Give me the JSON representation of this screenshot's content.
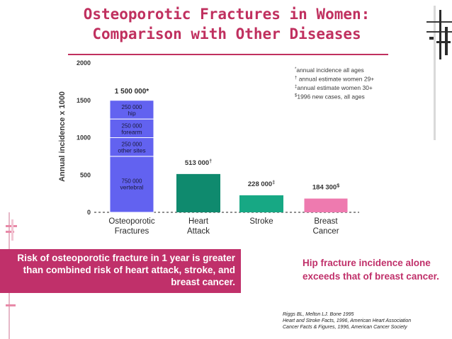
{
  "title": {
    "line1": "Osteoporotic Fractures in Women:",
    "line2": "Comparison with Other Diseases"
  },
  "colors": {
    "title": "#c0305f",
    "osteo_bar": "#6262f0",
    "heart_bar": "#0f8a6e",
    "stroke_bar": "#17a884",
    "breast_bar": "#ee7aaf",
    "callout_bg": "#c0306a",
    "accent_label": "#c0306a"
  },
  "chart_data": {
    "type": "bar",
    "ylabel": "Annual incidence x 1000",
    "ylim": [
      0,
      2000
    ],
    "yticks": [
      0,
      500,
      1000,
      1500,
      2000
    ],
    "categories": [
      {
        "line1": "Osteoporotic",
        "line2": "Fractures"
      },
      {
        "line1": "Heart",
        "line2": "Attack"
      },
      {
        "line1": "Stroke",
        "line2": ""
      },
      {
        "line1": "Breast",
        "line2": "Cancer"
      }
    ],
    "osteoporotic_stack": [
      {
        "value": 750,
        "line1": "750 000",
        "line2": "vertebral"
      },
      {
        "value": 250,
        "line1": "250 000",
        "line2": "other sites"
      },
      {
        "value": 250,
        "line1": "250 000",
        "line2": "forearm"
      },
      {
        "value": 250,
        "line1": "250 000",
        "line2": "hip"
      }
    ],
    "osteoporotic_total_label": "1 500 000*",
    "others": [
      {
        "category_index": 1,
        "value": 513,
        "label": "513 000",
        "mark": "†"
      },
      {
        "category_index": 2,
        "value": 228,
        "label": "228 000",
        "mark": "‡"
      },
      {
        "category_index": 3,
        "value": 184.3,
        "label": "184 300",
        "mark": "$"
      }
    ],
    "footnotes": [
      {
        "mark": "*",
        "text": "annual incidence all ages"
      },
      {
        "mark": "†",
        "text": " annual estimate women 29+"
      },
      {
        "mark": "‡",
        "text": "annual estimate women 30+"
      },
      {
        "mark": "$",
        "text": "1996 new cases, all ages"
      }
    ]
  },
  "callout_text": {
    "line1": "Risk of osteoporotic fracture in 1 year is greater",
    "line2": "than combined risk of heart attack, stroke, and",
    "line3": "breast cancer."
  },
  "hip_note": {
    "line1": "Hip fracture incidence alone",
    "line2": "exceeds that of breast cancer."
  },
  "references": [
    "Riggs BL, Melton LJ.  Bone 1995",
    "Heart and Stroke Facts, 1996, American Heart Association",
    "Cancer Facts & Figures, 1996, American Cancer Society"
  ]
}
